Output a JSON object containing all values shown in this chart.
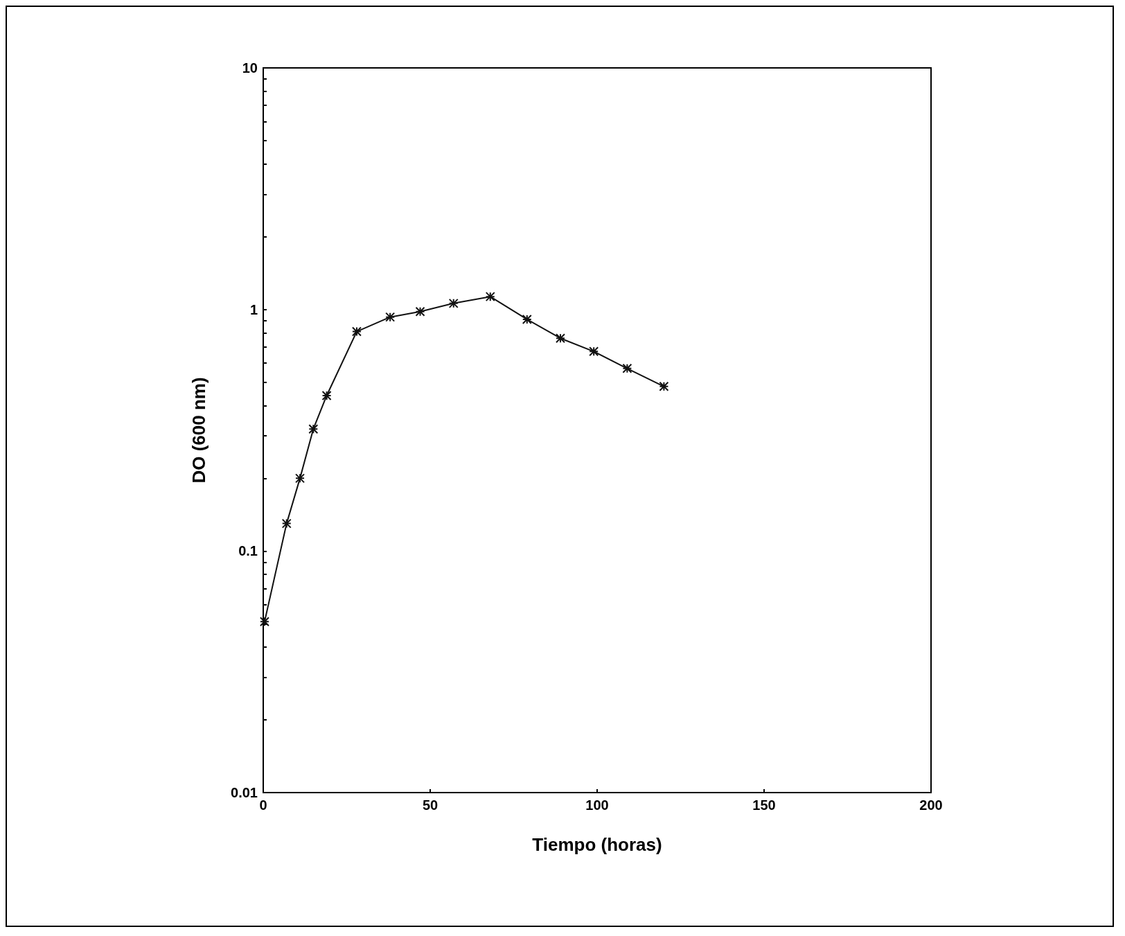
{
  "chart_data": {
    "type": "line",
    "xlabel": "Tiempo (horas)",
    "ylabel": "DO (600 nm)",
    "x": [
      0.4,
      7,
      11,
      15,
      19,
      28,
      38,
      47,
      57,
      68,
      79,
      89,
      99,
      109,
      120
    ],
    "series": [
      {
        "color": "#111111",
        "values": [
          0.051,
          0.13,
          0.2,
          0.32,
          0.44,
          0.81,
          0.93,
          0.98,
          1.06,
          1.13,
          0.91,
          0.76,
          0.67,
          0.57,
          0.48
        ]
      }
    ],
    "xlim": [
      0,
      200
    ],
    "xticks": [
      0,
      50,
      100,
      150,
      200
    ],
    "ylim": [
      0.01,
      10
    ],
    "log": "y",
    "yticks": [
      0.01,
      {
        "value": 0.02,
        "label": null
      },
      {
        "value": 0.03,
        "label": null
      },
      {
        "value": 0.04,
        "label": null
      },
      {
        "value": 0.05,
        "label": null
      },
      {
        "value": 0.06,
        "label": null
      },
      {
        "value": 0.07,
        "label": null
      },
      {
        "value": 0.08,
        "label": null
      },
      {
        "value": 0.09,
        "label": null
      },
      0.1,
      {
        "value": 0.2,
        "label": null
      },
      {
        "value": 0.3,
        "label": null
      },
      {
        "value": 0.4,
        "label": null
      },
      {
        "value": 0.5,
        "label": null
      },
      {
        "value": 0.6,
        "label": null
      },
      {
        "value": 0.7,
        "label": null
      },
      {
        "value": 0.8,
        "label": null
      },
      {
        "value": 0.9,
        "label": null
      },
      1,
      {
        "value": 2,
        "label": null
      },
      {
        "value": 3,
        "label": null
      },
      {
        "value": 4,
        "label": null
      },
      {
        "value": 5,
        "label": null
      },
      {
        "value": 6,
        "label": null
      },
      {
        "value": 7,
        "label": null
      },
      {
        "value": 8,
        "label": null
      },
      {
        "value": 9,
        "label": null
      },
      10
    ],
    "grid": false,
    "marker": "cross",
    "line_style": "solid"
  }
}
